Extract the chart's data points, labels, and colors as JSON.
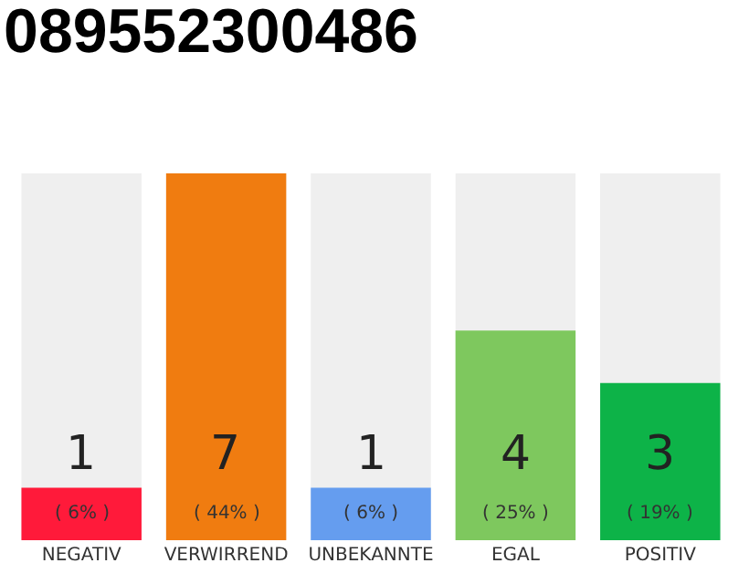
{
  "chart_data": {
    "type": "bar",
    "title": "089552300486",
    "categories": [
      "NEGATIV",
      "VERWIRREND",
      "UNBEKANNTE",
      "EGAL",
      "POSITIV"
    ],
    "values": [
      1,
      7,
      1,
      4,
      3
    ],
    "colors": [
      "#ff1a3a",
      "#f07c10",
      "#659def",
      "#7ec85e",
      "#0db348"
    ],
    "ylim": [
      0,
      7
    ],
    "tick_labels": "x",
    "grid": false,
    "data_labels": true,
    "annotations": [
      "( 6% )",
      "( 44% )",
      "( 6% )",
      "( 25% )",
      "( 19% )"
    ]
  }
}
